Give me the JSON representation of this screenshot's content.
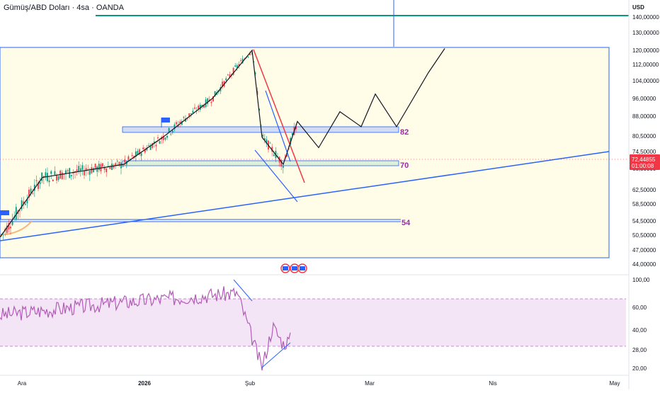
{
  "header": {
    "symbol_title": "Gümüş/ABD Doları · 4sa · OANDA",
    "currency": "USD"
  },
  "price_axis": {
    "ticks": [
      "140,00000",
      "130,00000",
      "120,00000",
      "112,00000",
      "104,00000",
      "96,00000",
      "88,00000",
      "80,50000",
      "74,50000",
      "68,50000",
      "62,50000",
      "58,50000",
      "54,50000",
      "50,50000",
      "47,00000",
      "44,00000"
    ],
    "last_price": "72,44855",
    "countdown": "01:00:08"
  },
  "rsi_axis": {
    "ticks": [
      "100,00",
      "60,00",
      "40,00",
      "28,00",
      "20,00"
    ]
  },
  "time_axis": {
    "ticks": [
      "Ara",
      "2026",
      "Şub",
      "Mar",
      "Nis",
      "May"
    ]
  },
  "levels": {
    "upper": "82",
    "middle": "70",
    "lower": "54"
  },
  "colors": {
    "candle_up": "#089981",
    "candle_down": "#f23645",
    "box_fill": "#fffde7",
    "box_border": "#2962ff",
    "zone_blue": "#d1dcf2",
    "zone_green": "#dcf0da",
    "level_label": "#9c27b0",
    "rsi_line": "#b35bb8",
    "rsi_band": "#f3e5f5",
    "resistance_line": "#089981",
    "trend_line": "#2962ff",
    "downtrend_line": "#f23645"
  },
  "chart_data": [
    {
      "type": "candlestick",
      "title": "Gümüş/ABD Doları · 4sa · OANDA",
      "y_unit": "USD",
      "ylim": [
        43,
        145
      ],
      "x_ticks": [
        "Ara",
        "2026",
        "Şub",
        "Mar",
        "Nis",
        "May"
      ],
      "grid": false,
      "close_path": {
        "x": [
          "Ara",
          "Ara",
          "2026",
          "2026",
          "2026",
          "Şub",
          "Şub",
          "Şub",
          "Şub",
          "Şub",
          "Mar",
          "Mar",
          "Mar",
          "Mar",
          "Mar",
          "Nis"
        ],
        "y": [
          50,
          66,
          70,
          80,
          96,
          120,
          80,
          70,
          86,
          76,
          90,
          84,
          98,
          84,
          108,
          121
        ]
      },
      "horizontal_levels": [
        140,
        82,
        70,
        54
      ],
      "last_price": 72.45
    },
    {
      "type": "line",
      "title": "",
      "ylim": [
        18,
        100
      ],
      "bands": [
        70,
        30
      ],
      "x": [
        "Ara",
        "2026",
        "Şub",
        "Şub"
      ],
      "y": [
        72,
        82,
        90,
        22
      ]
    }
  ]
}
